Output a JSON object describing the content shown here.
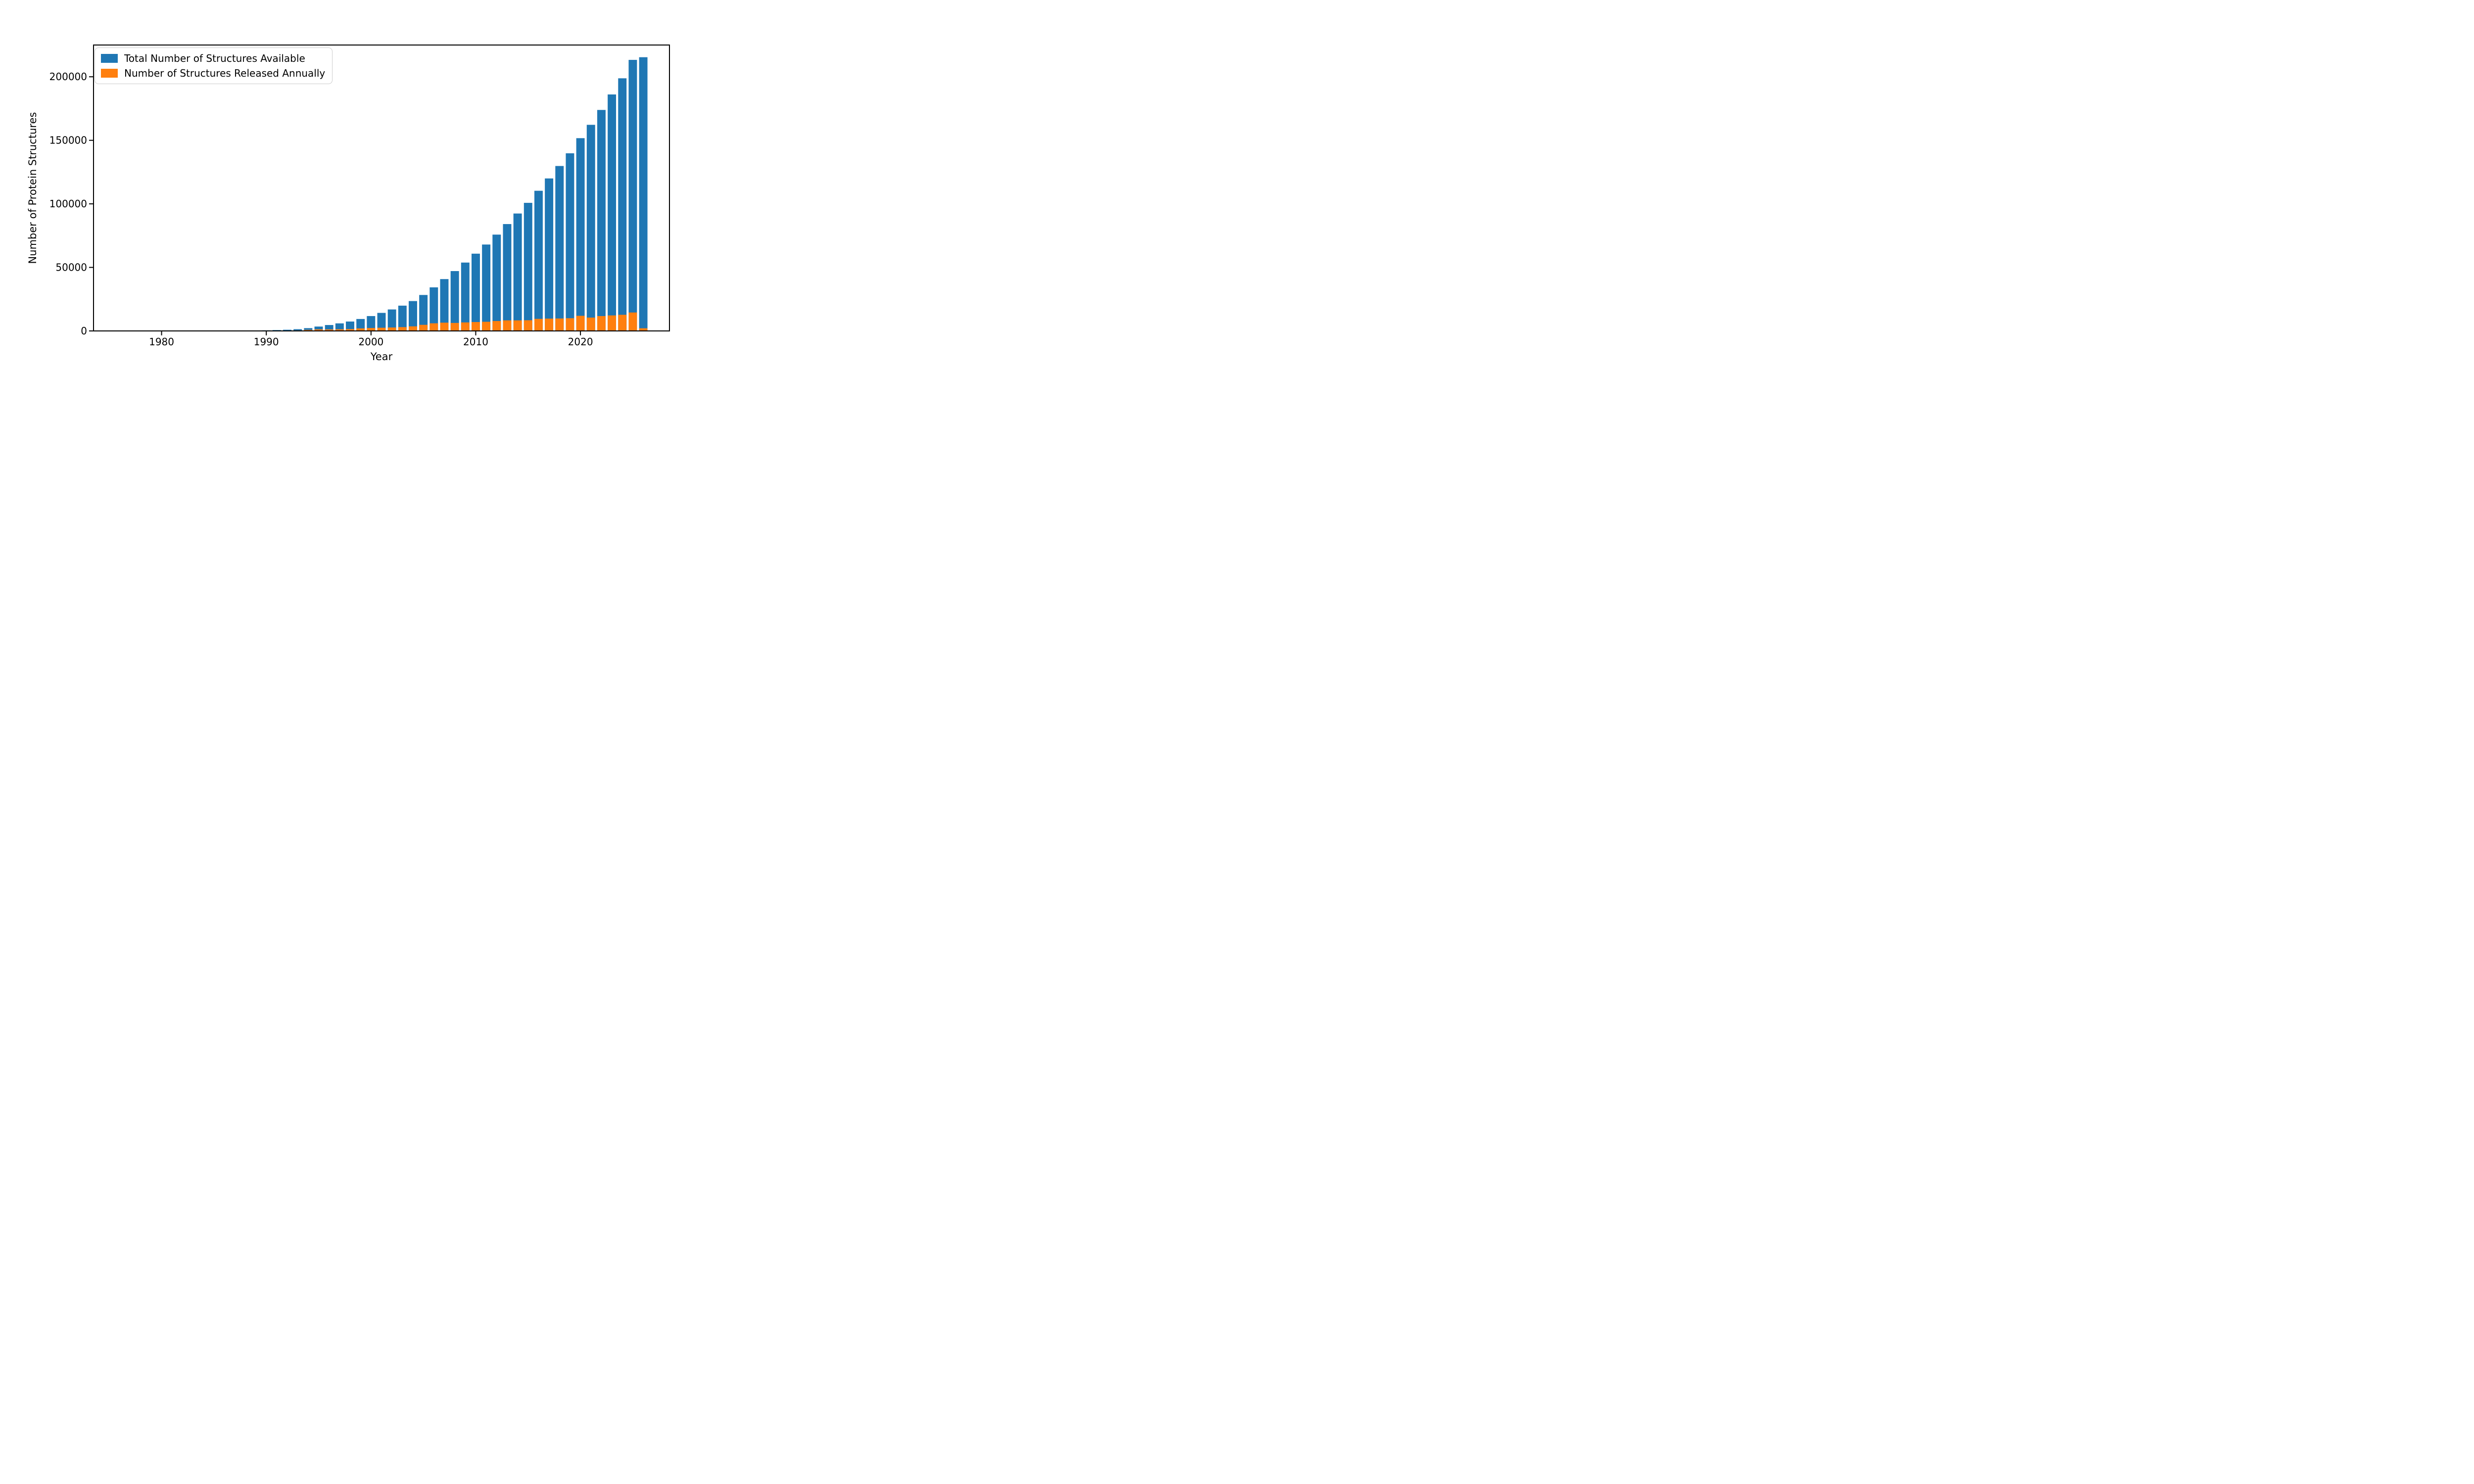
{
  "figure": {
    "background": "#ffffff"
  },
  "chart_data": {
    "type": "bar",
    "title": "",
    "xlabel": "Year",
    "ylabel": "Number of Protein Structures",
    "x": [
      1976,
      1977,
      1978,
      1979,
      1980,
      1981,
      1982,
      1983,
      1984,
      1985,
      1986,
      1987,
      1988,
      1989,
      1990,
      1991,
      1992,
      1993,
      1994,
      1995,
      1996,
      1997,
      1998,
      1999,
      2000,
      2001,
      2002,
      2003,
      2004,
      2005,
      2006,
      2007,
      2008,
      2009,
      2010,
      2011,
      2012,
      2013,
      2014,
      2015,
      2016,
      2017,
      2018,
      2019,
      2020,
      2021,
      2022,
      2023,
      2024,
      2025,
      2026
    ],
    "series": [
      {
        "name": "Total Number of Structures Available",
        "color": "#1f77b4",
        "values": [
          2,
          8,
          16,
          28,
          42,
          60,
          82,
          108,
          138,
          172,
          212,
          260,
          316,
          382,
          460,
          680,
          940,
          1380,
          2200,
          3450,
          4650,
          5950,
          7400,
          9400,
          11700,
          14200,
          16900,
          19900,
          23500,
          28300,
          34300,
          40800,
          47100,
          53800,
          60800,
          68000,
          75800,
          84100,
          92400,
          100800,
          110300,
          120000,
          129800,
          139800,
          151700,
          162200,
          173900,
          186100,
          198800,
          213300,
          215400
        ]
      },
      {
        "name": "Number of Structures Released Annually",
        "color": "#ff7f0e",
        "values": [
          2,
          6,
          8,
          12,
          14,
          18,
          22,
          26,
          30,
          34,
          40,
          48,
          56,
          66,
          78,
          220,
          260,
          440,
          820,
          1250,
          1200,
          1300,
          1450,
          2000,
          2300,
          2500,
          2700,
          3000,
          3600,
          4800,
          6000,
          6500,
          6300,
          6700,
          7000,
          7200,
          7800,
          8300,
          8300,
          8400,
          9500,
          9700,
          9800,
          10000,
          11900,
          10500,
          11700,
          12200,
          12700,
          14500,
          2100
        ]
      }
    ],
    "xticks": [
      1980,
      1990,
      2000,
      2010,
      2020
    ],
    "yticks": [
      0,
      50000,
      100000,
      150000,
      200000
    ],
    "xlim": [
      1973.5,
      2028.5
    ],
    "ylim": [
      0,
      225000
    ],
    "bar_width_fraction": 0.8,
    "grid": false,
    "legend_position": "upper-left",
    "axis_color": "#000000",
    "legend_border_color": "#cccccc"
  }
}
